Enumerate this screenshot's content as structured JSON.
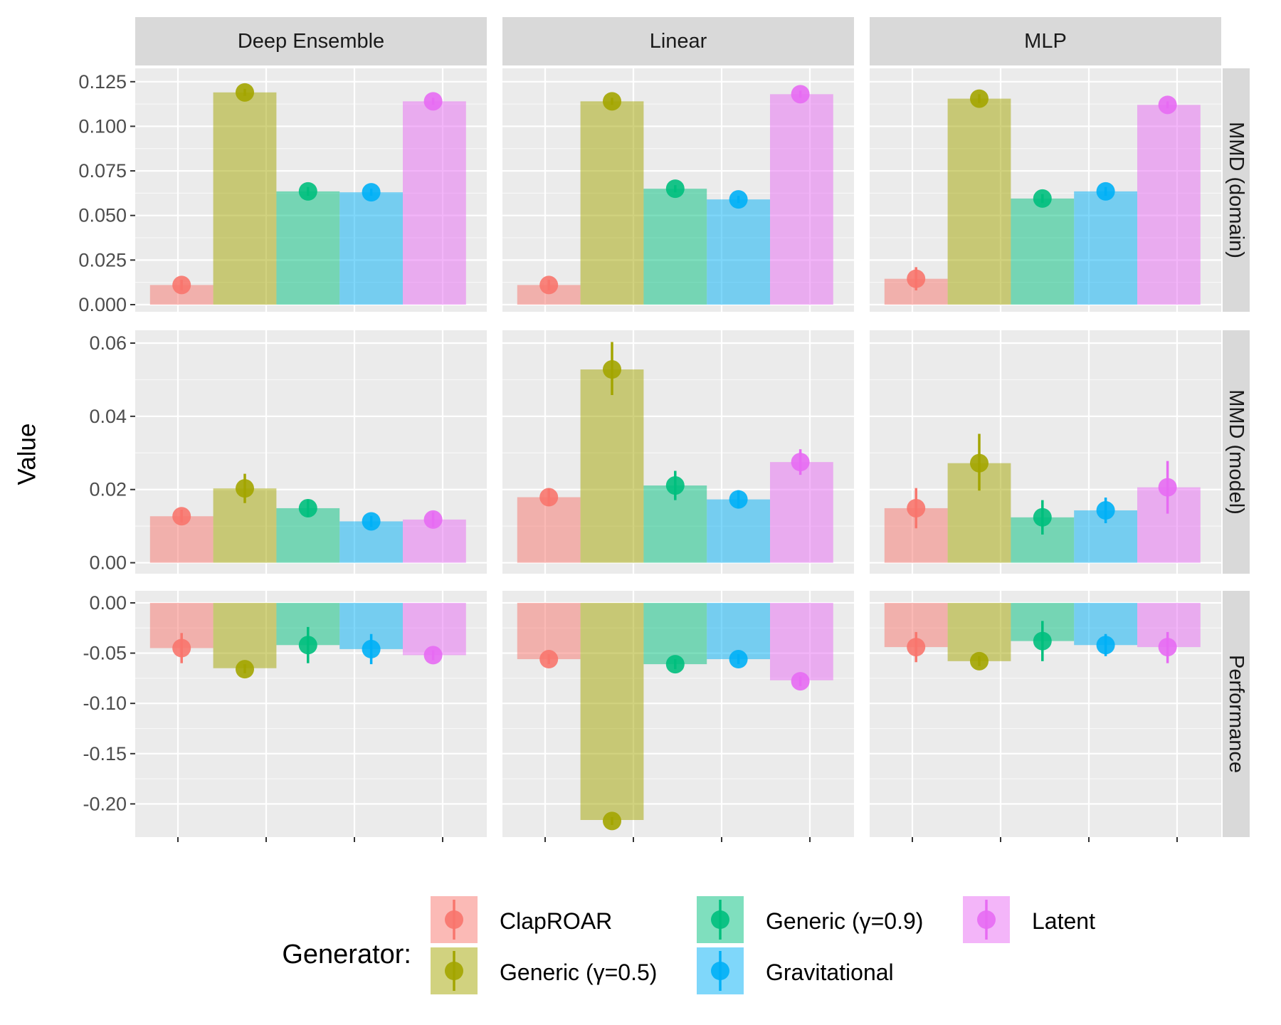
{
  "chart_data": {
    "type": "bar",
    "ylabel": "Value",
    "xlabel": "",
    "legend_title": "Generator:",
    "legend_position": "bottom",
    "grid": true,
    "columns": [
      "Deep Ensemble",
      "Linear",
      "MLP"
    ],
    "rows": [
      "MMD (domain)",
      "MMD (model)",
      "Performance"
    ],
    "series": [
      {
        "name": "ClapROAR",
        "color": "#F8766D"
      },
      {
        "name": "Generic (γ=0.5)",
        "color": "#A3A500"
      },
      {
        "name": "Generic (γ=0.9)",
        "color": "#00BF7D"
      },
      {
        "name": "Gravitational",
        "color": "#00B0F6"
      },
      {
        "name": "Latent",
        "color": "#E76BF3"
      }
    ],
    "y_axes": {
      "MMD (domain)": {
        "ylim": [
          -0.004,
          0.1325
        ],
        "ticks": [
          0.0,
          0.025,
          0.05,
          0.075,
          0.1,
          0.125
        ],
        "tick_labels": [
          "0.000",
          "0.025",
          "0.050",
          "0.075",
          "0.100",
          "0.125"
        ]
      },
      "MMD (model)": {
        "ylim": [
          -0.003,
          0.0635
        ],
        "ticks": [
          0.0,
          0.02,
          0.04,
          0.06
        ],
        "tick_labels": [
          "0.00",
          "0.02",
          "0.04",
          "0.06"
        ]
      },
      "Performance": {
        "ylim": [
          -0.233,
          0.012
        ],
        "ticks": [
          0.0,
          -0.05,
          -0.1,
          -0.15,
          -0.2
        ],
        "tick_labels": [
          "0.00",
          "-0.05",
          "-0.10",
          "-0.15",
          "-0.20"
        ]
      }
    },
    "panels": [
      {
        "column": "Deep Ensemble",
        "row": "MMD (domain)",
        "bars": [
          0.011,
          0.119,
          0.0635,
          0.063,
          0.114
        ],
        "points": [
          0.011,
          0.119,
          0.0635,
          0.063,
          0.114
        ],
        "error": [
          [
            0.008,
            0.014
          ],
          [
            0.117,
            0.121
          ],
          [
            0.061,
            0.066
          ],
          [
            0.061,
            0.065
          ],
          [
            0.112,
            0.116
          ]
        ]
      },
      {
        "column": "Linear",
        "row": "MMD (domain)",
        "bars": [
          0.011,
          0.114,
          0.065,
          0.059,
          0.118
        ],
        "points": [
          0.011,
          0.114,
          0.065,
          0.059,
          0.118
        ],
        "error": [
          [
            0.008,
            0.014
          ],
          [
            0.112,
            0.116
          ],
          [
            0.063,
            0.067
          ],
          [
            0.057,
            0.061
          ],
          [
            0.116,
            0.12
          ]
        ]
      },
      {
        "column": "MLP",
        "row": "MMD (domain)",
        "bars": [
          0.0145,
          0.1155,
          0.0595,
          0.0635,
          0.112
        ],
        "points": [
          0.0145,
          0.1155,
          0.0595,
          0.0635,
          0.112
        ],
        "error": [
          [
            0.008,
            0.021
          ],
          [
            0.113,
            0.118
          ],
          [
            0.057,
            0.062
          ],
          [
            0.061,
            0.066
          ],
          [
            0.11,
            0.114
          ]
        ]
      },
      {
        "column": "Deep Ensemble",
        "row": "MMD (model)",
        "bars": [
          0.0127,
          0.0203,
          0.0149,
          0.0113,
          0.0118
        ],
        "points": [
          0.0127,
          0.0203,
          0.0149,
          0.0113,
          0.0118
        ],
        "error": [
          [
            0.011,
            0.0145
          ],
          [
            0.0163,
            0.0243
          ],
          [
            0.0125,
            0.0173
          ],
          [
            0.0098,
            0.0128
          ],
          [
            0.0098,
            0.0138
          ]
        ]
      },
      {
        "column": "Linear",
        "row": "MMD (model)",
        "bars": [
          0.0179,
          0.0528,
          0.0211,
          0.0173,
          0.0275
        ],
        "points": [
          0.0179,
          0.0528,
          0.0211,
          0.0173,
          0.0275
        ],
        "error": [
          [
            0.0155,
            0.0203
          ],
          [
            0.0458,
            0.0603
          ],
          [
            0.0171,
            0.0251
          ],
          [
            0.0148,
            0.0198
          ],
          [
            0.024,
            0.031
          ]
        ]
      },
      {
        "column": "MLP",
        "row": "MMD (model)",
        "bars": [
          0.0149,
          0.0272,
          0.0124,
          0.0143,
          0.0206
        ],
        "points": [
          0.0149,
          0.0272,
          0.0124,
          0.0143,
          0.0206
        ],
        "error": [
          [
            0.0094,
            0.0204
          ],
          [
            0.0197,
            0.0352
          ],
          [
            0.0077,
            0.0171
          ],
          [
            0.0108,
            0.0178
          ],
          [
            0.0134,
            0.0278
          ]
        ]
      },
      {
        "column": "Deep Ensemble",
        "row": "Performance",
        "bars": [
          -0.045,
          -0.065,
          -0.042,
          -0.046,
          -0.052
        ],
        "points": [
          -0.045,
          -0.066,
          -0.042,
          -0.046,
          -0.052
        ],
        "error": [
          [
            -0.06,
            -0.03
          ],
          [
            -0.07,
            -0.061
          ],
          [
            -0.06,
            -0.024
          ],
          [
            -0.061,
            -0.031
          ],
          [
            -0.057,
            -0.047
          ]
        ]
      },
      {
        "column": "Linear",
        "row": "Performance",
        "bars": [
          -0.056,
          -0.216,
          -0.061,
          -0.056,
          -0.077
        ],
        "points": [
          -0.056,
          -0.217,
          -0.061,
          -0.056,
          -0.078
        ],
        "error": [
          [
            -0.061,
            -0.051
          ],
          [
            -0.221,
            -0.213
          ],
          [
            -0.066,
            -0.056
          ],
          [
            -0.061,
            -0.051
          ],
          [
            -0.083,
            -0.073
          ]
        ]
      },
      {
        "column": "MLP",
        "row": "Performance",
        "bars": [
          -0.044,
          -0.058,
          -0.038,
          -0.042,
          -0.044
        ],
        "points": [
          -0.044,
          -0.058,
          -0.038,
          -0.042,
          -0.044
        ],
        "error": [
          [
            -0.059,
            -0.029
          ],
          [
            -0.063,
            -0.053
          ],
          [
            -0.058,
            -0.018
          ],
          [
            -0.053,
            -0.031
          ],
          [
            -0.06,
            -0.029
          ]
        ]
      }
    ]
  }
}
